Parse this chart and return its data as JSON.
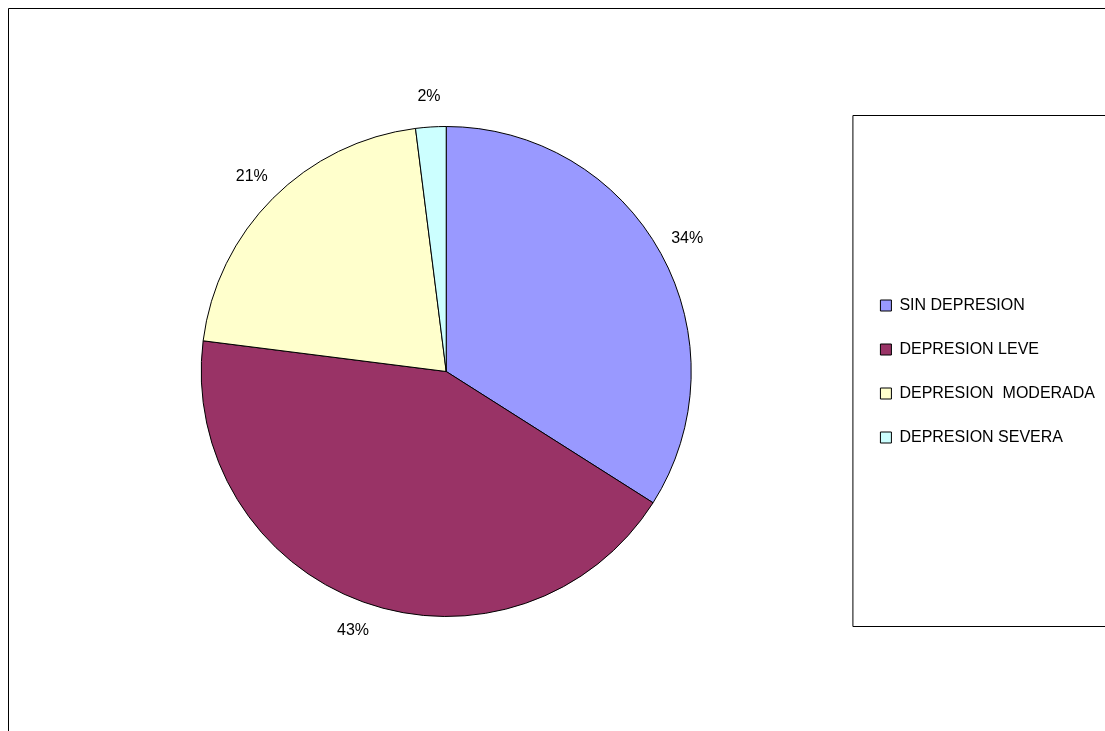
{
  "chart_data": {
    "type": "pie",
    "categories": [
      "SIN DEPRESION",
      "DEPRESION LEVE",
      "DEPRESION  MODERADA",
      "DEPRESION SEVERA"
    ],
    "values": [
      34,
      43,
      21,
      2
    ],
    "value_labels": [
      "34%",
      "43%",
      "21%",
      "2%"
    ],
    "colors": [
      "#9999ff",
      "#993366",
      "#ffffcc",
      "#ccffff"
    ],
    "legend": "right"
  }
}
